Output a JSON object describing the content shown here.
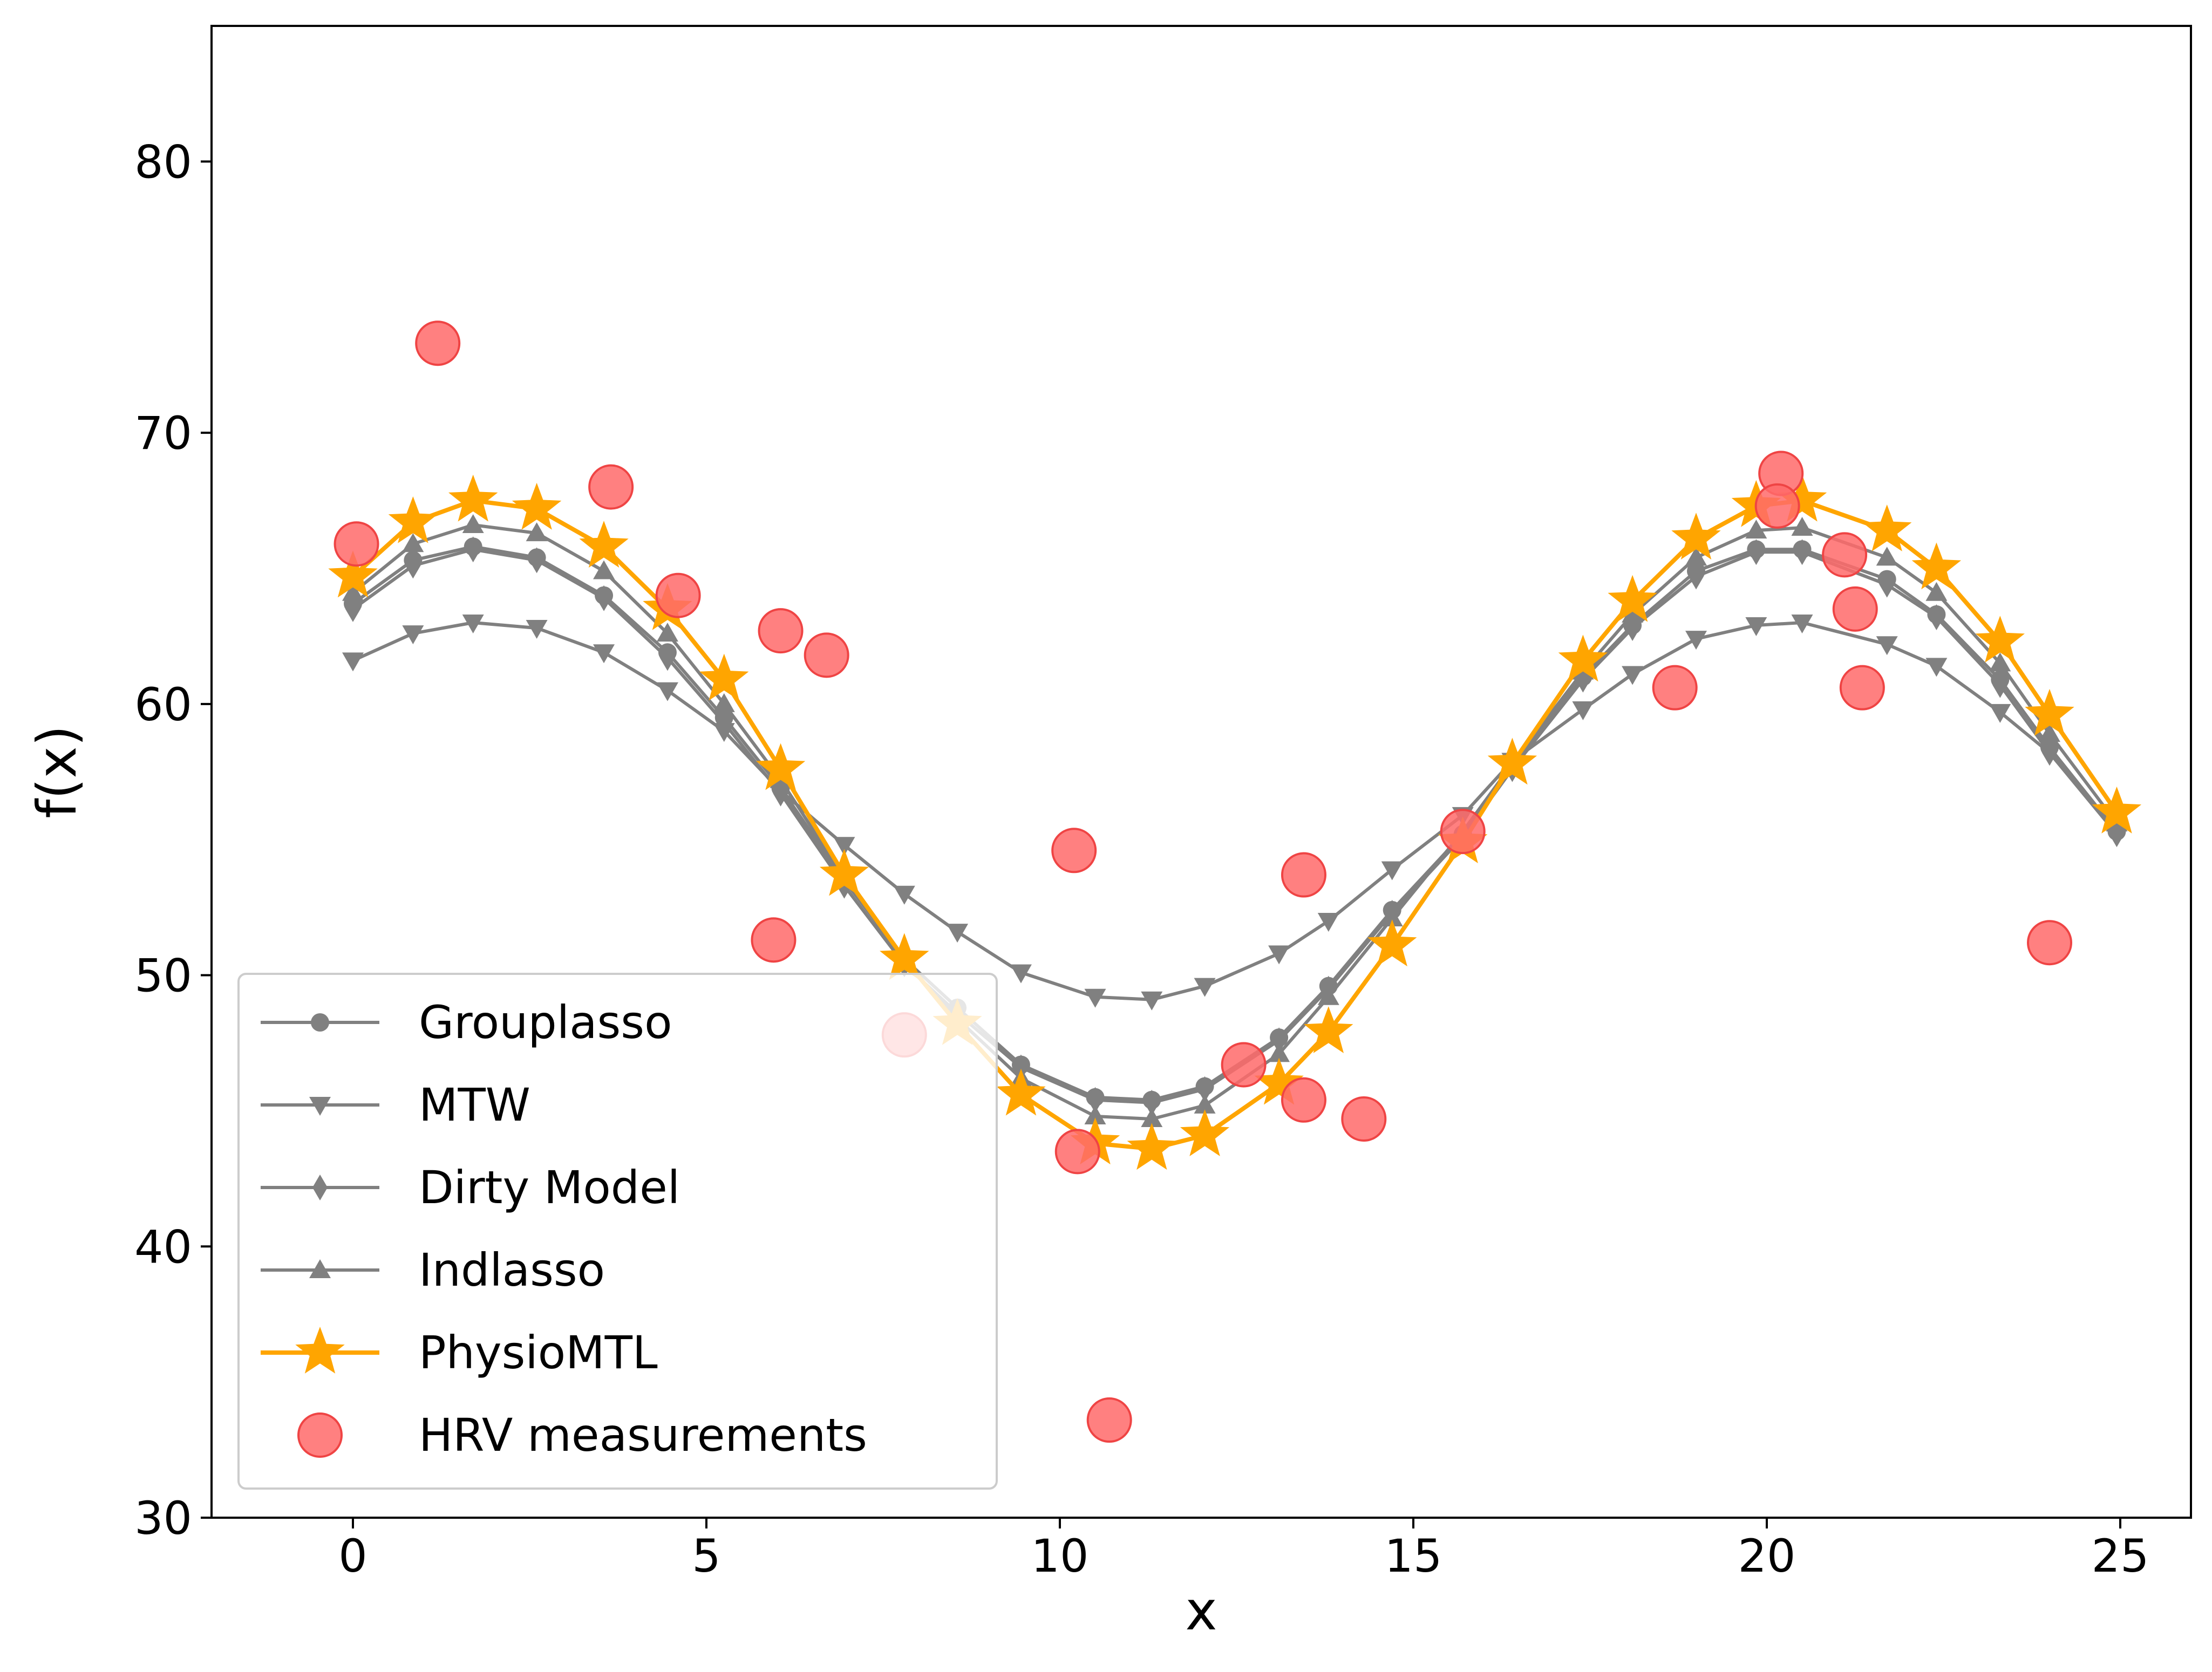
{
  "chart_data": {
    "type": "line",
    "title": "",
    "xlabel": "x",
    "ylabel": "f(x)",
    "xlim": [
      -2,
      26
    ],
    "ylim": [
      30,
      85
    ],
    "xticks": [
      0,
      5,
      10,
      15,
      20,
      25
    ],
    "yticks": [
      30,
      40,
      50,
      60,
      70,
      80
    ],
    "grid": false,
    "legend_position": "lower-left",
    "x": [
      0,
      0.85,
      1.7,
      2.6,
      3.55,
      4.45,
      5.25,
      6.05,
      6.95,
      7.8,
      8.55,
      9.45,
      10.5,
      11.3,
      12.05,
      13.1,
      13.8,
      14.7,
      15.7,
      16.4,
      17.4,
      18.1,
      19.0,
      19.85,
      20.5,
      21.7,
      22.4,
      23.3,
      24.0,
      24.95
    ],
    "series": [
      {
        "name": "Grouplasso",
        "marker": "circle",
        "color": "#808080",
        "values": [
          63.7,
          65.3,
          65.8,
          65.4,
          64.0,
          61.9,
          59.5,
          56.9,
          53.5,
          50.6,
          48.8,
          46.7,
          45.5,
          45.4,
          45.9,
          47.7,
          49.6,
          52.4,
          55.2,
          57.7,
          61.0,
          62.9,
          64.9,
          65.7,
          65.7,
          64.6,
          63.3,
          60.9,
          58.4,
          55.3
        ]
      },
      {
        "name": "MTW",
        "marker": "triangle-down",
        "color": "#808080",
        "values": [
          61.6,
          62.6,
          63.0,
          62.8,
          61.9,
          60.5,
          59.0,
          56.8,
          54.8,
          53.0,
          51.6,
          50.1,
          49.2,
          49.1,
          49.6,
          50.8,
          52.0,
          53.9,
          55.9,
          57.9,
          59.8,
          61.1,
          62.4,
          62.9,
          63.0,
          62.2,
          61.4,
          59.7,
          58.2,
          55.3
        ]
      },
      {
        "name": "Dirty Model",
        "marker": "diamond",
        "color": "#808080",
        "values": [
          63.5,
          65.1,
          65.7,
          65.3,
          63.9,
          61.7,
          59.3,
          56.7,
          53.3,
          50.4,
          48.6,
          46.6,
          45.4,
          45.3,
          45.8,
          47.6,
          49.5,
          52.3,
          55.1,
          57.6,
          60.9,
          62.8,
          64.7,
          65.6,
          65.6,
          64.4,
          63.2,
          60.7,
          58.2,
          55.2
        ]
      },
      {
        "name": "Indlasso",
        "marker": "triangle-up",
        "color": "#808080",
        "values": [
          64.1,
          65.9,
          66.6,
          66.3,
          64.9,
          62.6,
          60.0,
          57.2,
          53.6,
          50.5,
          48.4,
          46.2,
          44.8,
          44.7,
          45.2,
          47.1,
          49.2,
          52.1,
          55.3,
          57.8,
          61.2,
          63.3,
          65.4,
          66.4,
          66.5,
          65.4,
          64.1,
          61.5,
          58.9,
          55.6
        ]
      },
      {
        "name": "PhysioMTL",
        "marker": "star",
        "color": "#ffa500",
        "values": [
          64.7,
          66.7,
          67.5,
          67.2,
          65.8,
          63.5,
          60.9,
          57.6,
          53.7,
          50.6,
          48.2,
          45.6,
          43.8,
          43.6,
          44.1,
          46.0,
          47.9,
          51.1,
          54.9,
          57.8,
          61.6,
          63.8,
          66.1,
          67.3,
          67.5,
          66.4,
          65.0,
          62.3,
          59.6,
          56.0
        ]
      }
    ],
    "scatter": {
      "name": "HRV measurements",
      "color": "#ff6a6a",
      "points": [
        [
          0.05,
          65.9
        ],
        [
          1.2,
          73.3
        ],
        [
          3.65,
          68.0
        ],
        [
          4.6,
          64.0
        ],
        [
          6.05,
          62.7
        ],
        [
          6.7,
          61.8
        ],
        [
          5.95,
          51.3
        ],
        [
          7.8,
          47.8
        ],
        [
          10.2,
          54.6
        ],
        [
          10.25,
          43.5
        ],
        [
          10.7,
          33.6
        ],
        [
          12.6,
          46.7
        ],
        [
          13.45,
          53.7
        ],
        [
          13.45,
          45.4
        ],
        [
          14.3,
          44.7
        ],
        [
          15.7,
          55.3
        ],
        [
          18.7,
          60.6
        ],
        [
          20.2,
          68.5
        ],
        [
          20.15,
          67.3
        ],
        [
          21.1,
          65.5
        ],
        [
          21.25,
          63.5
        ],
        [
          21.35,
          60.6
        ],
        [
          24.0,
          51.2
        ]
      ]
    }
  }
}
